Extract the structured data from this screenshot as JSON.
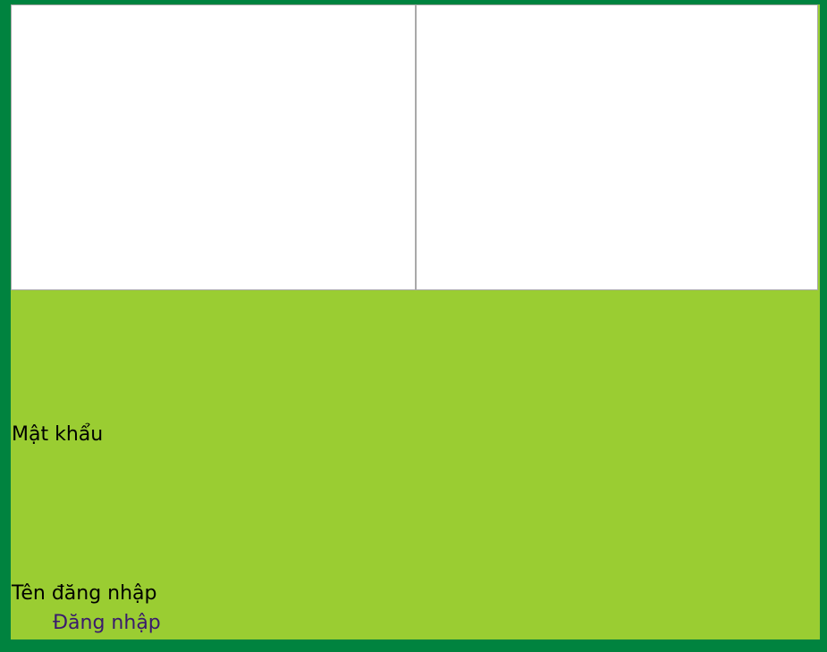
{
  "form": {
    "password_label": "Mật khẩu",
    "username_label": "Tên đăng nhập",
    "login_link": "Đăng nhập"
  },
  "colors": {
    "border_background": "#00833f",
    "form_background": "#9acd32",
    "panel_background": "#ffffff",
    "link_color": "#3a1a6e"
  }
}
